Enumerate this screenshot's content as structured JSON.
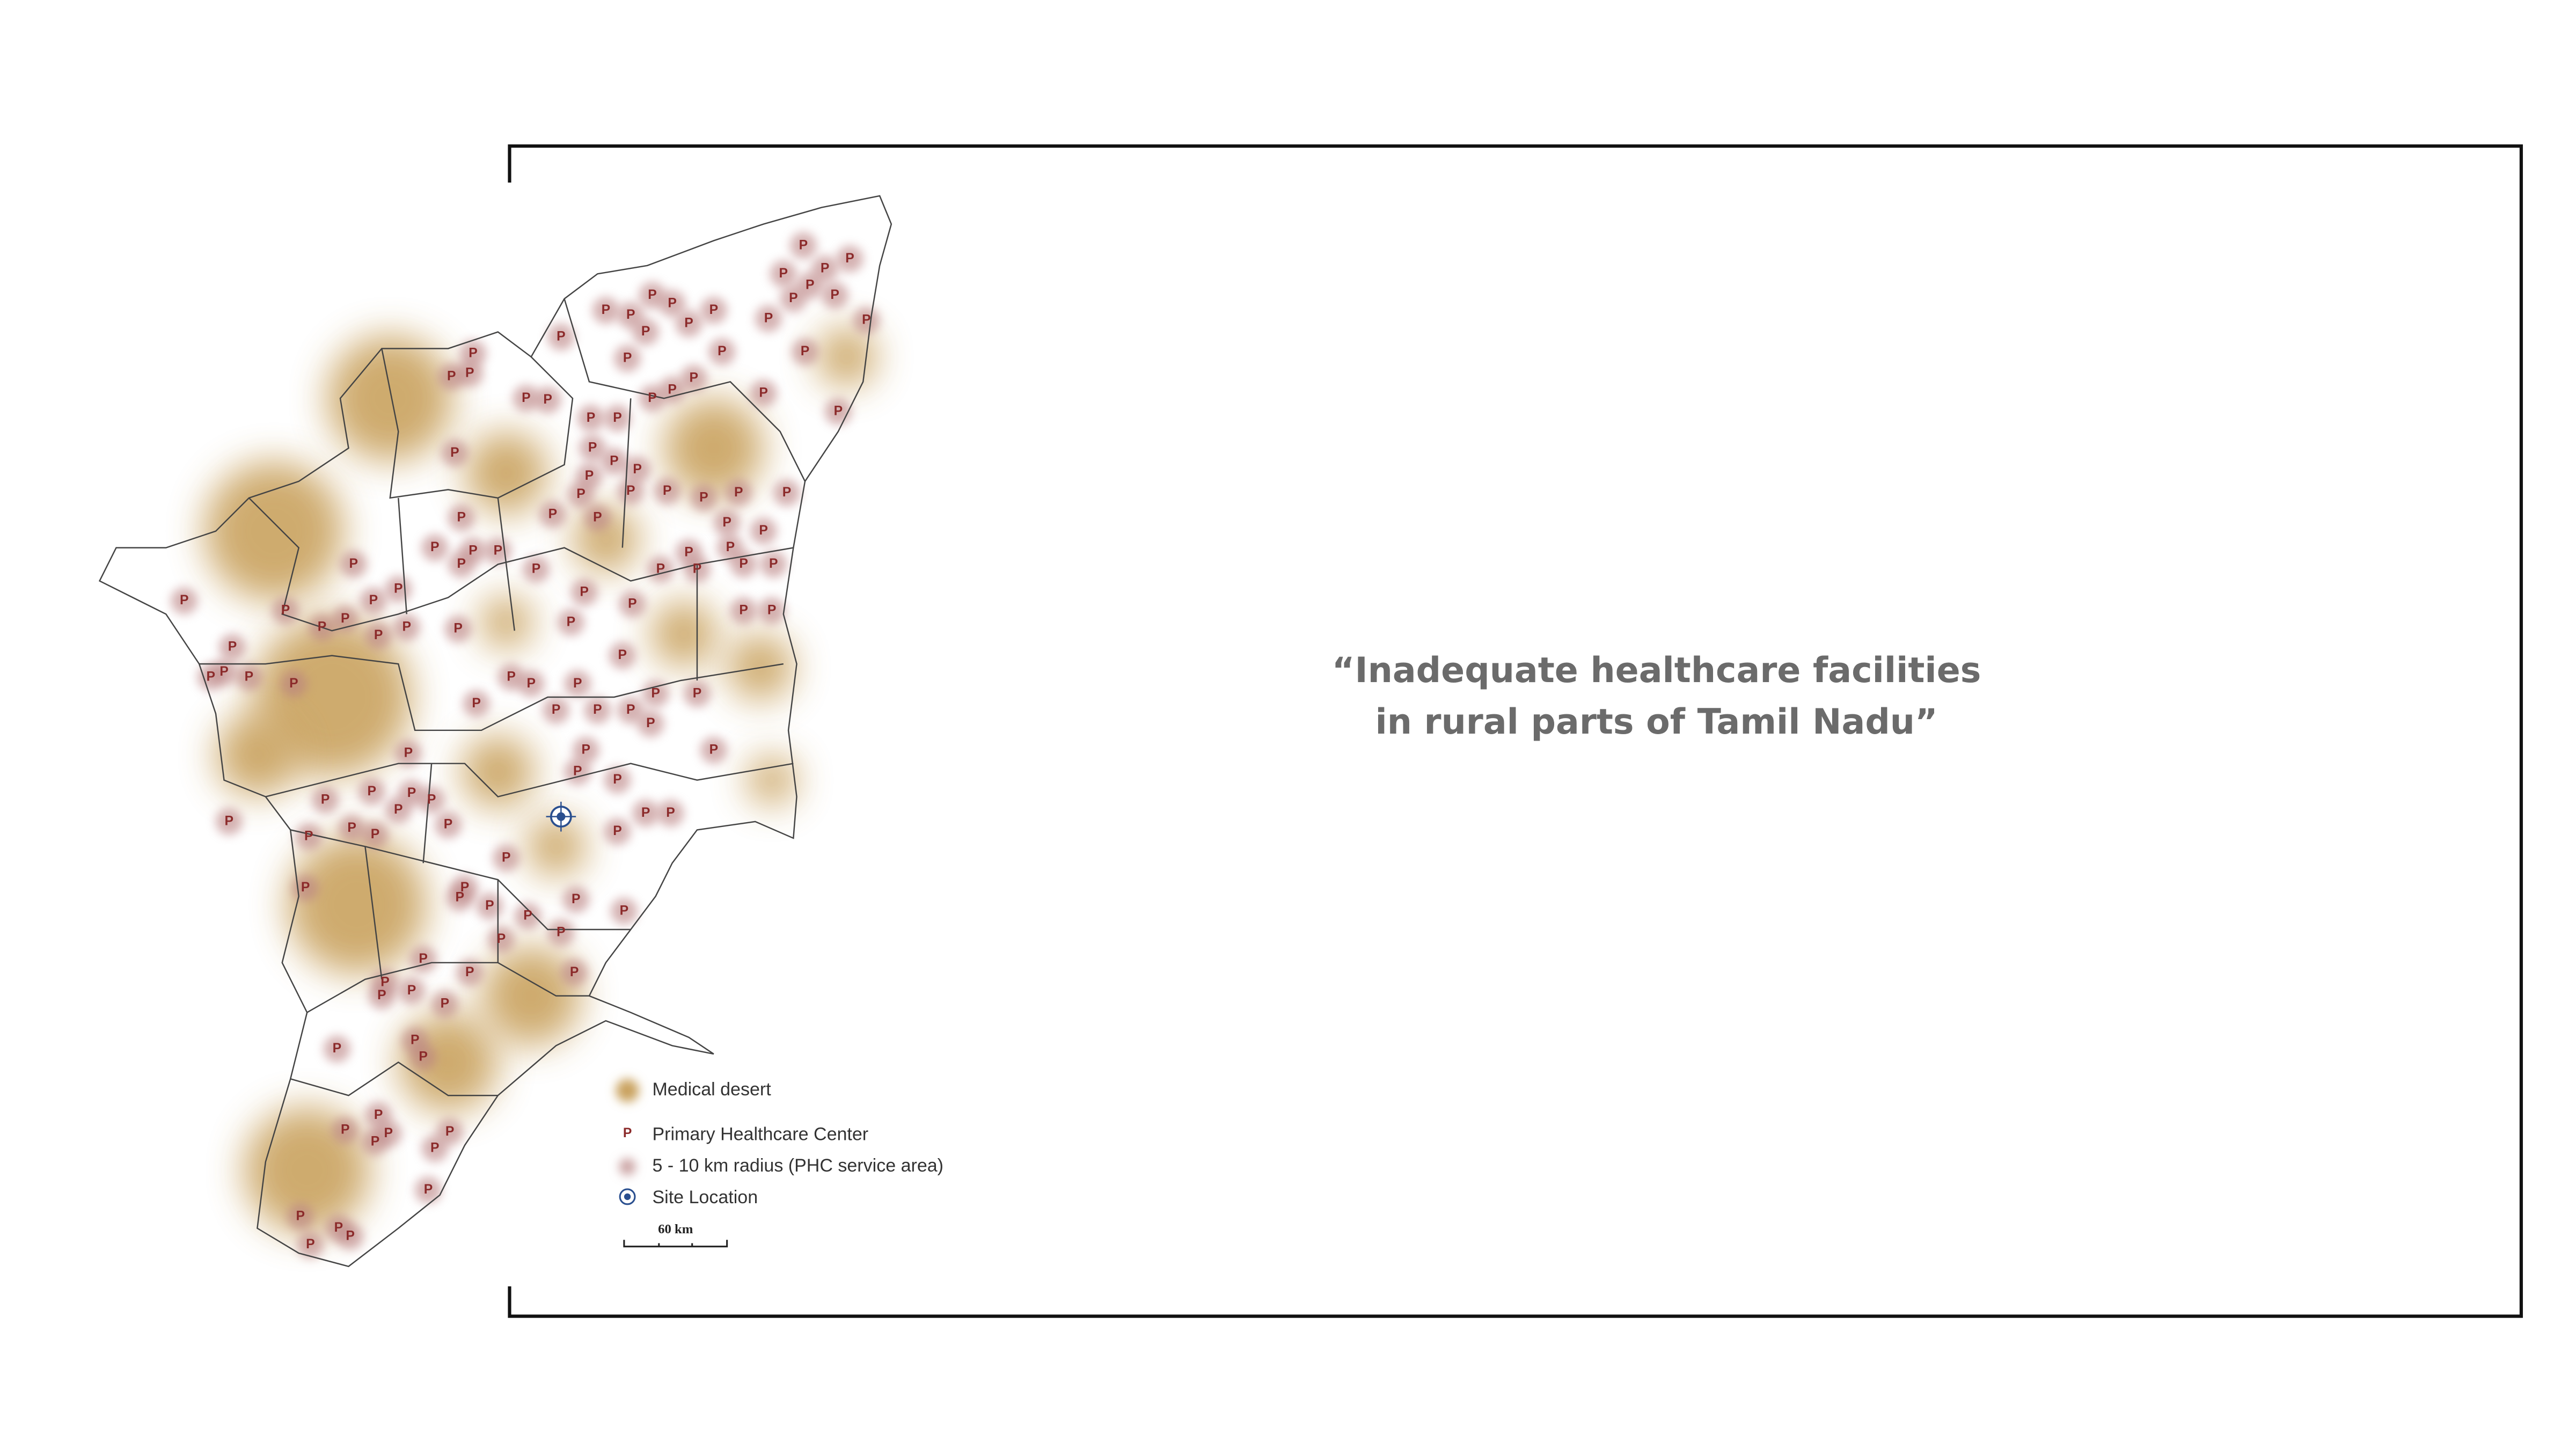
{
  "quote": {
    "lines": [
      "“Inadequate healthcare facilities",
      "in rural parts of Tamil Nadu”"
    ]
  },
  "map": {
    "phc_label": "P",
    "legend": [
      "Medical desert",
      "Primary Healthcare Center",
      "5 - 10 km radius (PHC service area)",
      "Site Location"
    ],
    "scale_label": "60 km"
  }
}
